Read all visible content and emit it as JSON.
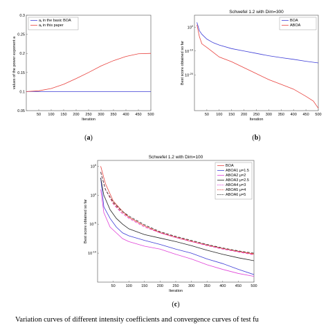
{
  "chart_data": [
    {
      "panel": "(a)",
      "type": "line",
      "title": "",
      "xlabel": "Iteration",
      "ylabel": "values of the power exponent a",
      "xlim": [
        0,
        500
      ],
      "ylim": [
        0.05,
        0.3
      ],
      "xticks": [
        50,
        100,
        150,
        200,
        250,
        300,
        350,
        400,
        450,
        500
      ],
      "yticks": [
        0.05,
        0.1,
        0.15,
        0.2,
        0.25,
        0.3
      ],
      "ytick_labels": [
        "0.05",
        "0.1",
        "0.15",
        "0.2",
        "0.25",
        "0.3"
      ],
      "legend": "top-left",
      "series": [
        {
          "name": "a_t in the basic BOA",
          "color": "#3b3bd6",
          "dash": "",
          "x": [
            0,
            500
          ],
          "y": [
            0.1,
            0.1
          ]
        },
        {
          "name": "a_t in this paper",
          "color": "#e8403c",
          "dash": "",
          "x": [
            0,
            50,
            100,
            150,
            200,
            250,
            300,
            350,
            400,
            450,
            500
          ],
          "y": [
            0.1,
            0.102,
            0.108,
            0.119,
            0.134,
            0.15,
            0.167,
            0.181,
            0.192,
            0.199,
            0.2
          ]
        }
      ]
    },
    {
      "panel": "(b)",
      "type": "line",
      "title": "Schwefel 1.2 with Dim=300",
      "xlabel": "Iteration",
      "ylabel": "Best score obtained so far",
      "xlim": [
        0,
        500
      ],
      "ylim": [
        -35,
        5
      ],
      "log_y": true,
      "xticks": [
        50,
        100,
        150,
        200,
        250,
        300,
        350,
        400,
        450,
        500
      ],
      "yticks": [
        0,
        -10,
        -20
      ],
      "ytick_labels": [
        "10^0",
        "10^-10",
        "10^-20"
      ],
      "legend": "top-right",
      "series": [
        {
          "name": "BOA",
          "color": "#3b3bd6",
          "dash": "",
          "x": [
            10,
            20,
            30,
            50,
            75,
            100,
            150,
            200,
            250,
            300,
            350,
            400,
            450,
            500
          ],
          "y": [
            2,
            -1.5,
            -3,
            -5,
            -6.5,
            -7.5,
            -9,
            -10,
            -11,
            -12,
            -12.8,
            -13.5,
            -14.3,
            -15
          ]
        },
        {
          "name": "ABOA",
          "color": "#e8403c",
          "dash": "",
          "x": [
            10,
            20,
            30,
            50,
            75,
            100,
            150,
            200,
            250,
            300,
            350,
            400,
            450,
            480,
            500
          ],
          "y": [
            1,
            -4,
            -7,
            -8.5,
            -10.5,
            -12.5,
            -14.5,
            -17,
            -19.5,
            -22,
            -24,
            -26,
            -29,
            -31,
            -34
          ]
        }
      ]
    },
    {
      "panel": "(c)",
      "type": "line",
      "title": "Schwefel 1.2 with Dim=100",
      "xlabel": "Iteration",
      "ylabel": "Best score obtained so far",
      "xlim": [
        0,
        500
      ],
      "ylim": [
        -15,
        6
      ],
      "log_y": true,
      "xticks": [
        50,
        100,
        150,
        200,
        250,
        300,
        350,
        400,
        450,
        500
      ],
      "yticks": [
        5,
        0,
        -5,
        -10
      ],
      "ytick_labels": [
        "10^5",
        "10^0",
        "10^-5",
        "10^-10"
      ],
      "legend": "top-right",
      "series": [
        {
          "name": "BOA",
          "color": "#e8403c",
          "dash": "",
          "x": [
            10,
            25,
            50,
            75,
            100,
            150,
            200,
            250,
            300,
            350,
            400,
            450,
            500
          ],
          "y": [
            5,
            2,
            -1,
            -2.5,
            -3.8,
            -5.3,
            -6.5,
            -7.3,
            -8,
            -8.6,
            -9.2,
            -9.7,
            -10.2
          ]
        },
        {
          "name": "ABOA1 μ=1.5",
          "color": "#3b3bd6",
          "dash": "",
          "x": [
            10,
            20,
            40,
            60,
            80,
            100,
            150,
            200,
            250,
            300,
            350,
            400,
            450,
            500
          ],
          "y": [
            3,
            -2,
            -4,
            -5.5,
            -6.5,
            -7,
            -7.8,
            -8.5,
            -9.3,
            -10,
            -11,
            -11.8,
            -12.8,
            -13.7
          ]
        },
        {
          "name": "ABOA2 μ=2",
          "color": "#e040d8",
          "dash": "",
          "x": [
            10,
            20,
            40,
            60,
            80,
            100,
            150,
            200,
            250,
            300,
            350,
            400,
            450,
            500
          ],
          "y": [
            1,
            -3,
            -5.5,
            -6.5,
            -7.5,
            -8,
            -8.8,
            -9.3,
            -10.2,
            -11,
            -12,
            -12.8,
            -13.5,
            -14
          ]
        },
        {
          "name": "ABOA3 μ=2.5",
          "color": "#222222",
          "dash": "",
          "x": [
            10,
            20,
            40,
            60,
            80,
            100,
            150,
            200,
            250,
            300,
            350,
            400,
            450,
            500
          ],
          "y": [
            3,
            0,
            -2.5,
            -4,
            -5,
            -5.8,
            -6.8,
            -7.4,
            -8,
            -8.7,
            -9.5,
            -10.2,
            -10.8,
            -11.3
          ]
        },
        {
          "name": "ABOA4 μ=3",
          "color": "#e040d8",
          "dash": "4,2",
          "x": [
            10,
            25,
            50,
            75,
            100,
            150,
            200,
            250,
            300,
            350,
            400,
            450,
            500
          ],
          "y": [
            4,
            1,
            -1.5,
            -3,
            -4,
            -5.5,
            -6.5,
            -7.3,
            -8,
            -8.7,
            -9.3,
            -9.8,
            -10.3
          ]
        },
        {
          "name": "ABOA5 μ=4",
          "color": "#e8403c",
          "dash": "4,2",
          "x": [
            10,
            25,
            50,
            75,
            100,
            150,
            200,
            250,
            300,
            350,
            400,
            450,
            500
          ],
          "y": [
            4,
            1,
            -1.4,
            -2.8,
            -3.8,
            -5.3,
            -6.4,
            -7.2,
            -7.9,
            -8.6,
            -9.2,
            -9.7,
            -10.1
          ]
        },
        {
          "name": "ABOA6 μ=5",
          "color": "#333333",
          "dash": "4,2",
          "x": [
            10,
            25,
            50,
            75,
            100,
            150,
            200,
            250,
            300,
            350,
            400,
            450,
            500
          ],
          "y": [
            4,
            1,
            -1.2,
            -2.6,
            -3.6,
            -5.1,
            -6.3,
            -7.1,
            -7.8,
            -8.5,
            -9.1,
            -9.6,
            -10
          ]
        }
      ]
    }
  ],
  "caption": {
    "lead": "Variation curves of different intensity coefficients and convergence curves of test fu"
  }
}
